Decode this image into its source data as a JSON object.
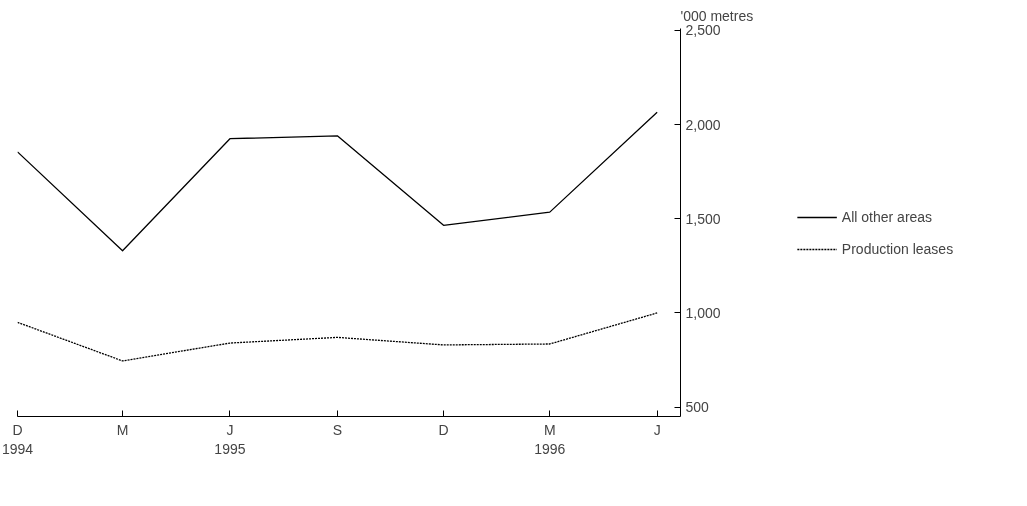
{
  "chart_data": {
    "type": "line",
    "ylabel": "'000 metres",
    "x": [
      "1994-12",
      "1995-03",
      "1995-06",
      "1995-09",
      "1995-12",
      "1996-03",
      "1996-06"
    ],
    "series": [
      {
        "name": "All other areas",
        "color": "#000000",
        "line_style": "solid",
        "values": [
          1855,
          1330,
          1925,
          1940,
          1465,
          1535,
          2065
        ]
      },
      {
        "name": "Production leases",
        "color": "#000000",
        "line_style": "dotted",
        "values": [
          950,
          745,
          840,
          870,
          830,
          835,
          1000
        ]
      }
    ],
    "xlim": [
      "1994-12",
      "1996-06-21"
    ],
    "xticks": [
      {
        "value": "1994-12",
        "label": "D\n1994"
      },
      {
        "value": "1995-03",
        "label": "M\n "
      },
      {
        "value": "1995-06",
        "label": "J\n1995"
      },
      {
        "value": "1995-09",
        "label": "S\n "
      },
      {
        "value": "1995-12",
        "label": "D\n "
      },
      {
        "value": "1996-03",
        "label": "M\n1996"
      },
      {
        "value": "1996-06",
        "label": "J\n "
      }
    ],
    "ylim": [
      450,
      2510
    ],
    "yticks": [
      {
        "value": 500,
        "label": "500"
      },
      {
        "value": 1000,
        "label": "1,000"
      },
      {
        "value": 1500,
        "label": "1,500"
      },
      {
        "value": 2000,
        "label": "2,000"
      },
      {
        "value": 2500,
        "label": "2,500"
      }
    ],
    "grid": false,
    "legend": "right",
    "marker": "none"
  }
}
